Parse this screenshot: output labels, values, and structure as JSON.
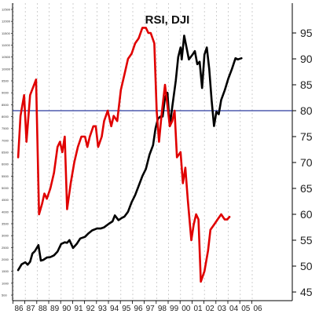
{
  "chart_data": {
    "type": "line",
    "title": "RSI, DJI",
    "x_tick_labels": [
      "86",
      "87",
      "88",
      "89",
      "90",
      "91",
      "92",
      "93",
      "94",
      "95",
      "96",
      "97",
      "98",
      "99",
      "00",
      "01",
      "02",
      "03",
      "04",
      "05",
      "06"
    ],
    "left_axis": {
      "ticks": [
        12500,
        12000,
        11500,
        11000,
        10500,
        10000,
        9500,
        9000,
        8500,
        8000,
        7500,
        7000,
        6500,
        6000,
        5500,
        5000,
        4500,
        4000,
        3500,
        3000,
        2500,
        2000,
        1500,
        1000,
        500
      ],
      "range": [
        300,
        12700
      ]
    },
    "right_axis": {
      "ticks": [
        95,
        90,
        85,
        80,
        75,
        70,
        65,
        60,
        55,
        50,
        45
      ],
      "range": [
        40,
        100
      ]
    },
    "reference_line": {
      "value": 80,
      "axis": "right",
      "color": "#2b3a9e"
    },
    "series": [
      {
        "name": "DJI",
        "axis": "left",
        "color": "#000000",
        "points": [
          [
            1985.9,
            1550
          ],
          [
            1986.2,
            1800
          ],
          [
            1986.5,
            1880
          ],
          [
            1986.7,
            1780
          ],
          [
            1986.9,
            1900
          ],
          [
            1987.1,
            2250
          ],
          [
            1987.3,
            2350
          ],
          [
            1987.6,
            2600
          ],
          [
            1987.8,
            1950
          ],
          [
            1988.0,
            1980
          ],
          [
            1988.3,
            2080
          ],
          [
            1988.6,
            2100
          ],
          [
            1988.9,
            2170
          ],
          [
            1989.2,
            2330
          ],
          [
            1989.5,
            2650
          ],
          [
            1989.8,
            2720
          ],
          [
            1990.0,
            2700
          ],
          [
            1990.2,
            2810
          ],
          [
            1990.5,
            2480
          ],
          [
            1990.8,
            2650
          ],
          [
            1991.1,
            2880
          ],
          [
            1991.5,
            2950
          ],
          [
            1991.8,
            3100
          ],
          [
            1992.1,
            3220
          ],
          [
            1992.5,
            3300
          ],
          [
            1992.8,
            3300
          ],
          [
            1993.1,
            3350
          ],
          [
            1993.5,
            3500
          ],
          [
            1993.8,
            3600
          ],
          [
            1994.0,
            3850
          ],
          [
            1994.3,
            3650
          ],
          [
            1994.6,
            3750
          ],
          [
            1994.8,
            3800
          ],
          [
            1995.1,
            4000
          ],
          [
            1995.4,
            4400
          ],
          [
            1995.7,
            4700
          ],
          [
            1996.0,
            5100
          ],
          [
            1996.3,
            5500
          ],
          [
            1996.6,
            5800
          ],
          [
            1996.9,
            6400
          ],
          [
            1997.2,
            6800
          ],
          [
            1997.4,
            7500
          ],
          [
            1997.6,
            7900
          ],
          [
            1997.8,
            8000
          ],
          [
            1998.0,
            8000
          ],
          [
            1998.2,
            8800
          ],
          [
            1998.4,
            9000
          ],
          [
            1998.6,
            7600
          ],
          [
            1998.8,
            8400
          ],
          [
            1999.1,
            9500
          ],
          [
            1999.3,
            10500
          ],
          [
            1999.5,
            10900
          ],
          [
            1999.6,
            10400
          ],
          [
            1999.8,
            11400
          ],
          [
            2000.0,
            10900
          ],
          [
            2000.2,
            10400
          ],
          [
            2000.5,
            10600
          ],
          [
            2000.7,
            10750
          ],
          [
            2000.9,
            10200
          ],
          [
            2001.1,
            10300
          ],
          [
            2001.3,
            9200
          ],
          [
            2001.5,
            10600
          ],
          [
            2001.7,
            10900
          ],
          [
            2001.9,
            10000
          ],
          [
            2002.1,
            8700
          ],
          [
            2002.3,
            7600
          ],
          [
            2002.5,
            8200
          ],
          [
            2002.7,
            8100
          ],
          [
            2002.9,
            8700
          ],
          [
            2003.2,
            9100
          ],
          [
            2003.5,
            9600
          ],
          [
            2003.8,
            10000
          ],
          [
            2004.1,
            10450
          ],
          [
            2004.3,
            10400
          ],
          [
            2004.6,
            10450
          ]
        ]
      },
      {
        "name": "RSI",
        "axis": "right",
        "color": "#e00000",
        "points": [
          [
            1985.9,
            71
          ],
          [
            1986.1,
            79
          ],
          [
            1986.4,
            83
          ],
          [
            1986.6,
            74
          ],
          [
            1986.9,
            83
          ],
          [
            1987.4,
            86
          ],
          [
            1987.65,
            60
          ],
          [
            1987.9,
            62
          ],
          [
            1988.1,
            64
          ],
          [
            1988.3,
            63
          ],
          [
            1988.6,
            65
          ],
          [
            1988.9,
            68
          ],
          [
            1989.2,
            73
          ],
          [
            1989.4,
            74
          ],
          [
            1989.6,
            72
          ],
          [
            1989.8,
            75
          ],
          [
            1990.0,
            61
          ],
          [
            1990.3,
            66
          ],
          [
            1990.6,
            70
          ],
          [
            1990.9,
            73
          ],
          [
            1991.2,
            75
          ],
          [
            1991.5,
            75
          ],
          [
            1991.7,
            73
          ],
          [
            1991.9,
            75
          ],
          [
            1992.2,
            77
          ],
          [
            1992.4,
            77
          ],
          [
            1992.6,
            73
          ],
          [
            1992.9,
            75
          ],
          [
            1993.1,
            78
          ],
          [
            1993.4,
            80
          ],
          [
            1993.7,
            77
          ],
          [
            1993.9,
            79
          ],
          [
            1994.2,
            78
          ],
          [
            1994.5,
            84
          ],
          [
            1994.8,
            87
          ],
          [
            1995.1,
            90
          ],
          [
            1995.4,
            91
          ],
          [
            1995.7,
            93
          ],
          [
            1996.0,
            94
          ],
          [
            1996.3,
            96
          ],
          [
            1996.6,
            96
          ],
          [
            1996.8,
            95
          ],
          [
            1997.0,
            95
          ],
          [
            1997.3,
            93
          ],
          [
            1997.5,
            80
          ],
          [
            1997.7,
            74
          ],
          [
            1997.9,
            79
          ],
          [
            1998.2,
            85
          ],
          [
            1998.4,
            81
          ],
          [
            1998.6,
            77
          ],
          [
            1998.8,
            78
          ],
          [
            1999.0,
            80
          ],
          [
            1999.2,
            71
          ],
          [
            1999.5,
            72
          ],
          [
            1999.7,
            66
          ],
          [
            1999.9,
            69
          ],
          [
            2000.1,
            63
          ],
          [
            2000.4,
            55
          ],
          [
            2000.6,
            58
          ],
          [
            2000.8,
            60
          ],
          [
            2001.0,
            59
          ],
          [
            2001.2,
            47
          ],
          [
            2001.5,
            49
          ],
          [
            2001.8,
            53
          ],
          [
            2002.0,
            57
          ],
          [
            2002.3,
            58
          ],
          [
            2002.6,
            59
          ],
          [
            2002.9,
            60
          ],
          [
            2003.2,
            59
          ],
          [
            2003.4,
            59
          ],
          [
            2003.6,
            59.5
          ]
        ]
      }
    ]
  }
}
